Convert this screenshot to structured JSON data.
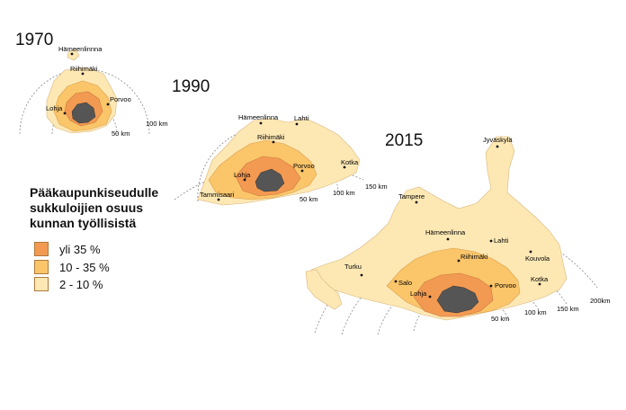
{
  "colors": {
    "over35": "#f39a52",
    "between10_35": "#fbc56a",
    "between2_10": "#fde8b4",
    "capital": "#555555",
    "border": "#c9a66b",
    "ring": "#888888"
  },
  "legend": {
    "title_lines": [
      "Pääkaupunkiseudulle",
      "sukkuloijien osuus",
      "kunnan työllisistä"
    ],
    "items": [
      {
        "label": "yli 35 %",
        "color_key": "over35"
      },
      {
        "label": "10 - 35 %",
        "color_key": "between10_35"
      },
      {
        "label": "2 - 10 %",
        "color_key": "between2_10"
      }
    ]
  },
  "maps": [
    {
      "year": "1970",
      "cities": [
        "Hämeenlinnna",
        "Riihimäki",
        "Porvoo",
        "Lohja"
      ],
      "ring_labels": [
        "50 km",
        "100 km"
      ]
    },
    {
      "year": "1990",
      "cities": [
        "Hämeenlinna",
        "Lahti",
        "Riihimäki",
        "Kotka",
        "Porvoo",
        "Lohja",
        "Tammisaari"
      ],
      "ring_labels": [
        "50 km",
        "100 km",
        "150 km"
      ]
    },
    {
      "year": "2015",
      "cities": [
        "Jyväskylä",
        "Tampere",
        "Hämeenlinna",
        "Lahti",
        "Riihimäki",
        "Kouvola",
        "Turku",
        "Salo",
        "Porvoo",
        "Kotka",
        "Lohja"
      ],
      "ring_labels": [
        "50 km",
        "100 km",
        "150 km",
        "200km"
      ]
    }
  ]
}
